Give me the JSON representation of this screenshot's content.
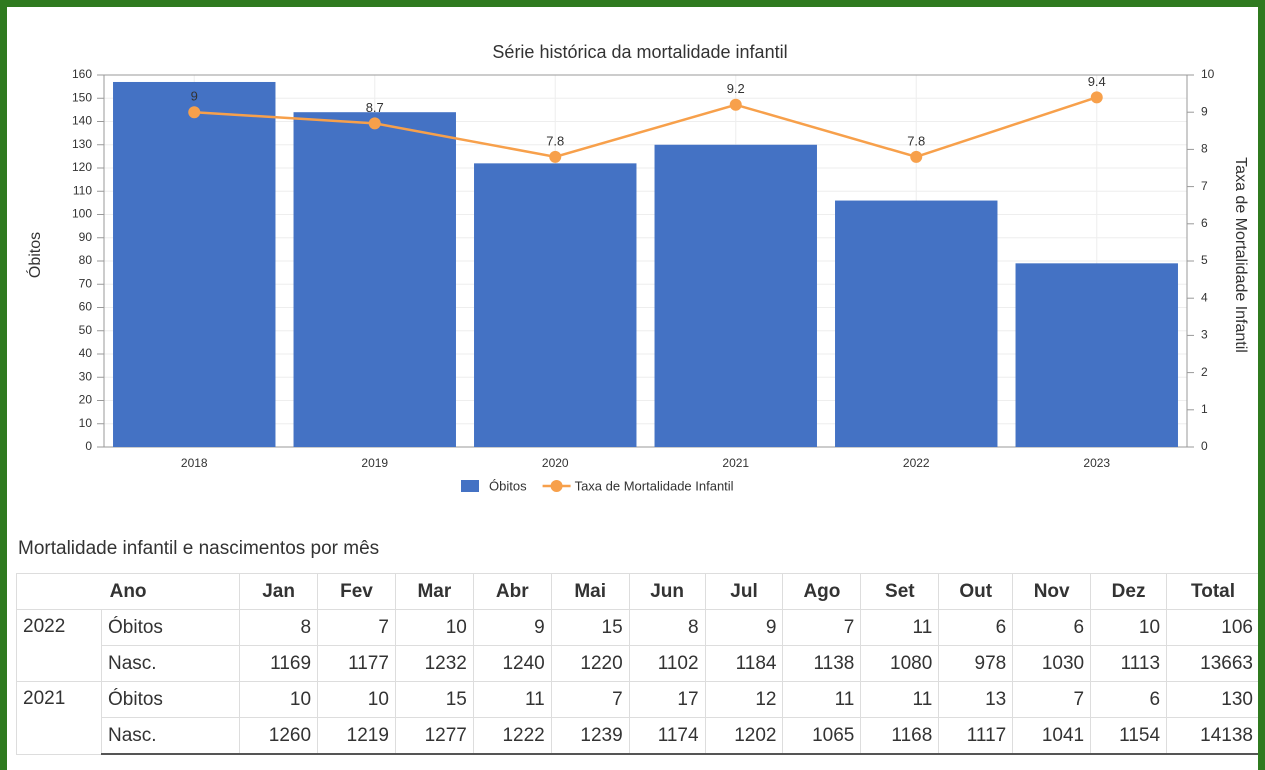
{
  "chart_data": {
    "type": "combo",
    "title": "Série histórica da mortalidade infantil",
    "y_label": "Óbitos",
    "y2_label": "Taxa de Mortalidade Infantil",
    "categories": [
      "2018",
      "2019",
      "2020",
      "2021",
      "2022",
      "2023"
    ],
    "series": [
      {
        "name": "Óbitos",
        "type": "bar",
        "color": "#4472c4",
        "values": [
          157,
          144,
          122,
          130,
          106,
          79
        ]
      },
      {
        "name": "Taxa de Mortalidade Infantil",
        "type": "line",
        "axis": "y2",
        "color": "#f7a04b",
        "values": [
          9,
          8.7,
          7.8,
          9.2,
          7.8,
          9.4
        ]
      }
    ],
    "ylim": [
      0,
      160
    ],
    "yticks": [
      0,
      10,
      20,
      30,
      40,
      50,
      60,
      70,
      80,
      90,
      100,
      110,
      120,
      130,
      140,
      150,
      160
    ],
    "y2lim": [
      0,
      10
    ],
    "y2ticks": [
      0,
      1,
      2,
      3,
      4,
      5,
      6,
      7,
      8,
      9,
      10
    ],
    "grid": true,
    "legend": "bottom"
  },
  "table": {
    "title": "Mortalidade infantil e nascimentos por mês",
    "header": [
      "Ano",
      "Jan",
      "Fev",
      "Mar",
      "Abr",
      "Mai",
      "Jun",
      "Jul",
      "Ago",
      "Set",
      "Out",
      "Nov",
      "Dez",
      "Total"
    ],
    "groups": [
      {
        "year": "2022",
        "rows": [
          {
            "label": "Óbitos",
            "values": [
              8,
              7,
              10,
              9,
              15,
              8,
              9,
              7,
              11,
              6,
              6,
              10,
              106
            ]
          },
          {
            "label": "Nasc.",
            "values": [
              1169,
              1177,
              1232,
              1240,
              1220,
              1102,
              1184,
              1138,
              1080,
              978,
              1030,
              1113,
              13663
            ]
          }
        ]
      },
      {
        "year": "2021",
        "rows": [
          {
            "label": "Óbitos",
            "values": [
              10,
              10,
              15,
              11,
              7,
              17,
              12,
              11,
              11,
              13,
              7,
              6,
              130
            ]
          },
          {
            "label": "Nasc.",
            "values": [
              1260,
              1219,
              1277,
              1222,
              1239,
              1174,
              1202,
              1065,
              1168,
              1117,
              1041,
              1154,
              14138
            ]
          }
        ]
      }
    ]
  }
}
